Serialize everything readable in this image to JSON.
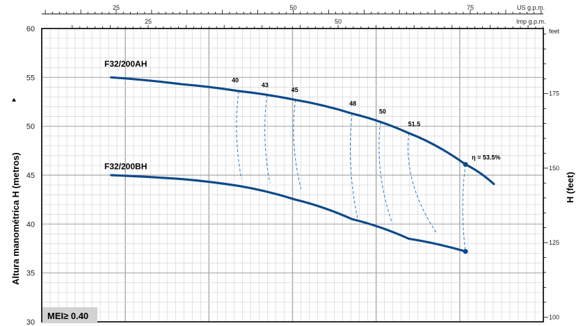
{
  "chart_data": {
    "type": "line",
    "y_axis_left": {
      "label": "Altura manométrica H  (metros)",
      "range": [
        30,
        60
      ],
      "ticks": [
        30,
        35,
        40,
        45,
        50,
        55,
        60
      ]
    },
    "y_axis_right": {
      "label": "H  (feet)",
      "unit": "feet",
      "ticks": [
        100,
        125,
        150,
        175
      ]
    },
    "x_axis_top_us": {
      "unit": "US g.p.m.",
      "ticks": [
        25,
        50,
        75
      ]
    },
    "x_axis_top_imp": {
      "unit": "Imp g.p.m.",
      "ticks": [
        25,
        50
      ]
    },
    "series": [
      {
        "name": "F32/200AH",
        "points": [
          [
            5.5,
            55.0
          ],
          [
            8.0,
            54.3
          ],
          [
            10.0,
            53.6
          ],
          [
            12.0,
            52.7
          ],
          [
            14.0,
            51.3
          ],
          [
            16.0,
            49.3
          ],
          [
            18.0,
            46.1
          ],
          [
            19.0,
            44.1
          ]
        ]
      },
      {
        "name": "F32/200BH",
        "points": [
          [
            5.5,
            45.0
          ],
          [
            8.0,
            44.6
          ],
          [
            10.0,
            43.9
          ],
          [
            12.0,
            42.5
          ],
          [
            14.0,
            40.5
          ],
          [
            16.0,
            38.5
          ],
          [
            18.0,
            37.2
          ]
        ]
      }
    ],
    "efficiency_labels": [
      "40",
      "43",
      "45",
      "48",
      "50",
      "51.5",
      "η = 53.5%"
    ],
    "efficiency_curves": [
      {
        "label": "40",
        "top": [
          10.0,
          53.6
        ],
        "bottom": [
          10.1,
          44.6
        ]
      },
      {
        "label": "43",
        "top": [
          11.0,
          53.2
        ],
        "bottom": [
          11.1,
          44.2
        ]
      },
      {
        "label": "45",
        "top": [
          12.0,
          52.7
        ],
        "bottom": [
          12.2,
          43.6
        ]
      },
      {
        "label": "48",
        "top": [
          14.0,
          51.3
        ],
        "bottom": [
          14.2,
          40.5
        ]
      },
      {
        "label": "50",
        "top": [
          15.0,
          50.4
        ],
        "bottom": [
          15.4,
          40.2
        ]
      },
      {
        "label": "51.5",
        "top": [
          16.0,
          49.3
        ],
        "bottom": [
          17.0,
          39.0
        ]
      },
      {
        "label": "η = 53.5%",
        "top": [
          18.0,
          46.1
        ],
        "bottom": [
          18.0,
          37.2
        ]
      }
    ],
    "grid": true,
    "mei_text": "MEI≥ 0.40"
  },
  "colors": {
    "curve": "#0d4a8a",
    "grid_minor": "#d4d4d4",
    "grid_major": "#a9a9a9",
    "mei_bg": "#d2d2d2"
  }
}
